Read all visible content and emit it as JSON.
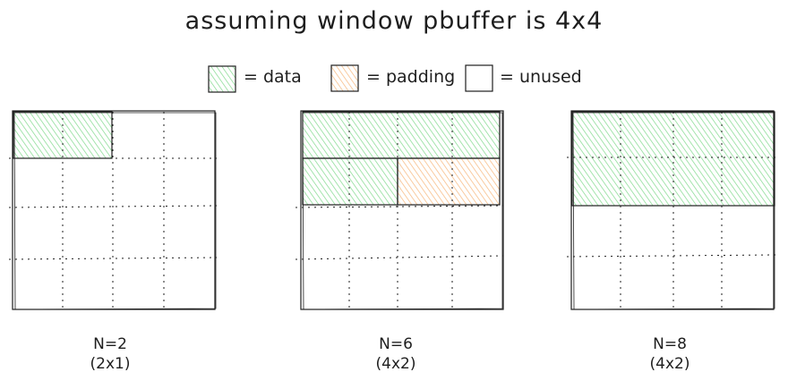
{
  "title": "assuming window pbuffer is 4x4",
  "colors": {
    "data": "#b2f2bb",
    "padding": "#ffd8a8",
    "line": "#1e1e1e"
  },
  "legend": [
    {
      "key": "data",
      "label": "= data"
    },
    {
      "key": "padding",
      "label": "= padding"
    },
    {
      "key": "unused",
      "label": "= unused"
    }
  ],
  "grids": [
    {
      "name": "n2",
      "caption_line1": "N=2",
      "caption_line2": "(2x1)",
      "blocks": [
        {
          "kind": "data",
          "col": 0,
          "row": 0,
          "w": 2,
          "h": 1
        }
      ]
    },
    {
      "name": "n6",
      "caption_line1": "N=6",
      "caption_line2": "(4x2)",
      "blocks": [
        {
          "kind": "data",
          "col": 0,
          "row": 0,
          "w": 4,
          "h": 1
        },
        {
          "kind": "data",
          "col": 0,
          "row": 1,
          "w": 2,
          "h": 1
        },
        {
          "kind": "padding",
          "col": 2,
          "row": 1,
          "w": 2,
          "h": 1
        }
      ]
    },
    {
      "name": "n8",
      "caption_line1": "N=8",
      "caption_line2": "(4x2)",
      "blocks": [
        {
          "kind": "data",
          "col": 0,
          "row": 0,
          "w": 4,
          "h": 2
        }
      ]
    }
  ]
}
